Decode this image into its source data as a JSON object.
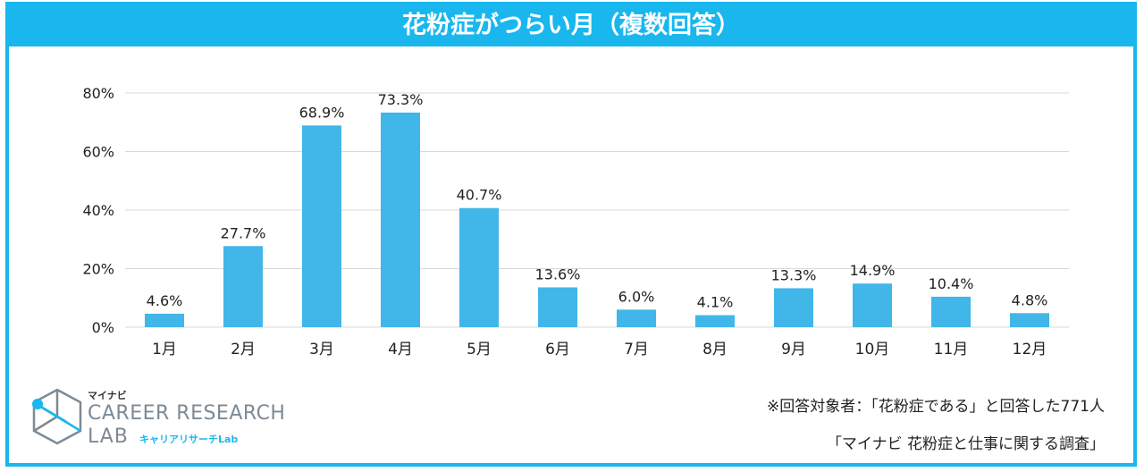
{
  "title": "花粉症がつらい月（複数回答）",
  "chart_data": {
    "type": "bar",
    "title": "花粉症がつらい月（複数回答）",
    "categories": [
      "1月",
      "2月",
      "3月",
      "4月",
      "5月",
      "6月",
      "7月",
      "8月",
      "9月",
      "10月",
      "11月",
      "12月"
    ],
    "values": [
      4.6,
      27.7,
      68.9,
      73.3,
      40.7,
      13.6,
      6.0,
      4.1,
      13.3,
      14.9,
      10.4,
      4.8
    ],
    "value_labels": [
      "4.6%",
      "27.7%",
      "68.9%",
      "73.3%",
      "40.7%",
      "13.6%",
      "6.0%",
      "4.1%",
      "13.3%",
      "14.9%",
      "10.4%",
      "4.8%"
    ],
    "yticks": [
      0,
      20,
      40,
      60,
      80
    ],
    "ytick_labels": [
      "0%",
      "20%",
      "40%",
      "60%",
      "80%"
    ],
    "ylim": [
      0,
      80
    ],
    "xlabel": "",
    "ylabel": "",
    "grid": true,
    "bar_color": "#41b6e9",
    "grid_color": "#d9d9d9"
  },
  "logo": {
    "brand": "マイナビ",
    "line1": "CAREER RESEARCH",
    "line2": "LAB",
    "sub": "キャリアリサーチLab"
  },
  "notes": {
    "respondents": "※回答対象者：「花粉症である」と回答した771人",
    "survey": "「マイナビ 花粉症と仕事に関する調査」"
  },
  "colors": {
    "accent": "#19b7ee",
    "logo_gray": "#7d8a96"
  }
}
